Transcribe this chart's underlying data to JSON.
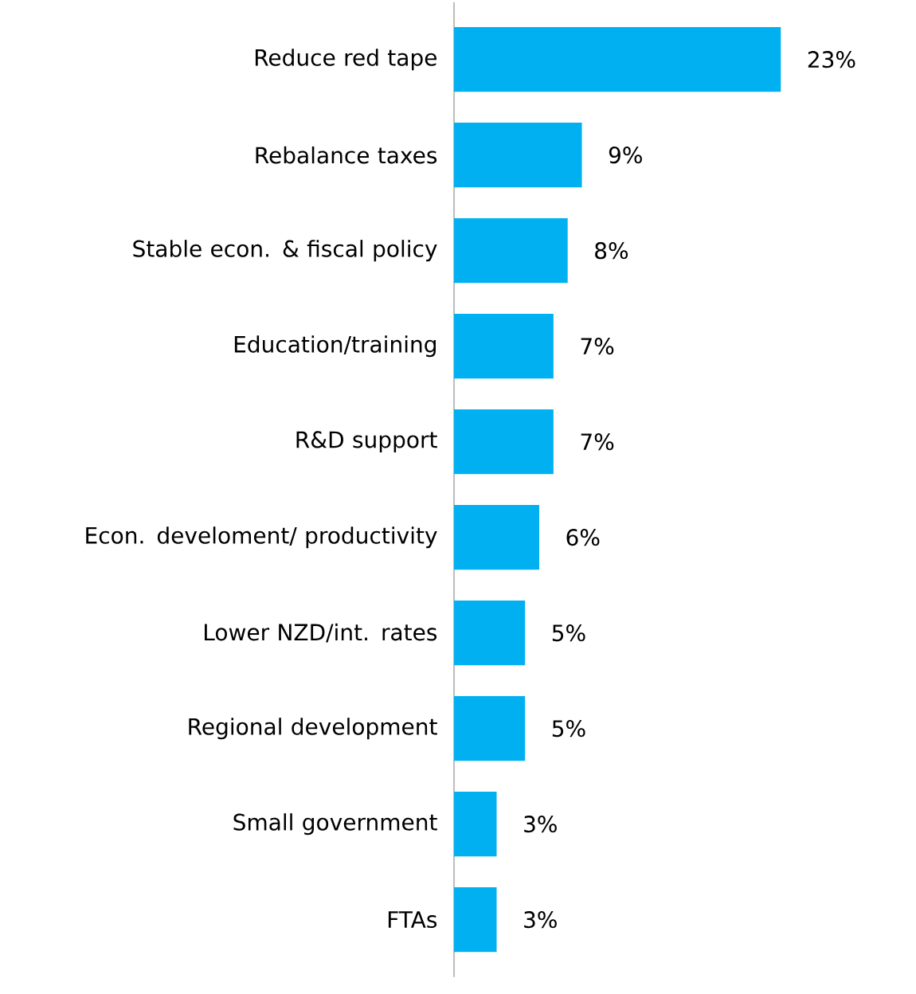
{
  "chart_data": {
    "type": "bar",
    "orientation": "horizontal",
    "categories": [
      "Reduce red tape",
      "Rebalance taxes",
      "Stable econ. & fiscal policy",
      "Education/training",
      "R&D support",
      "Econ. develoment/ productivity",
      "Lower NZD/int. rates",
      "Regional development",
      "Small government",
      "FTAs"
    ],
    "values": [
      23,
      9,
      8,
      7,
      7,
      6,
      5,
      5,
      3,
      3
    ],
    "value_labels": [
      "23%",
      "9%",
      "8%",
      "7%",
      "7%",
      "6%",
      "5%",
      "5%",
      "3%",
      "3%"
    ],
    "color": "#00b0f0"
  }
}
